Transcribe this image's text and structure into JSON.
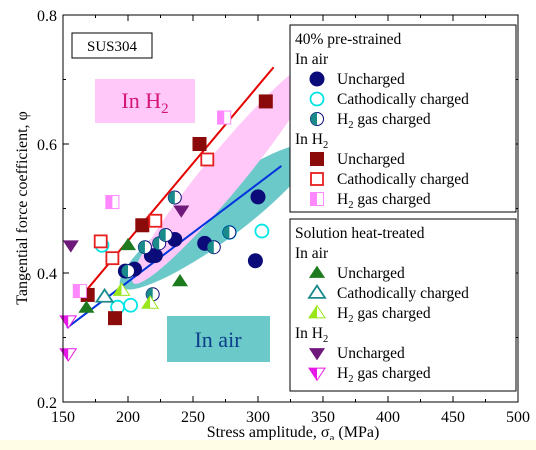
{
  "chart_data": {
    "type": "scatter",
    "title": "",
    "xlabel": "Stress amplitude, σ",
    "xlabel_sub": "a",
    "xlabel_unit": " (MPa)",
    "ylabel": "Tangential force coefficient, φ",
    "xlim": [
      150,
      500
    ],
    "ylim": [
      0.2,
      0.8
    ],
    "xticks": [
      150,
      200,
      250,
      300,
      350,
      400,
      450,
      500
    ],
    "yticks": [
      0.2,
      0.4,
      0.6,
      0.8
    ],
    "ytick_labels": [
      "0.2",
      "0.4",
      "0.6",
      "0.8"
    ],
    "grid": false,
    "material_label": "SUS304",
    "annotations": {
      "h2_region": {
        "text": "In H",
        "sub": "2"
      },
      "air_region": {
        "text": "In air"
      }
    },
    "colors": {
      "navy": "#0b0b7a",
      "cyan": "#00e6e6",
      "darkred": "#8b0a0a",
      "red": "#e61e1e",
      "pink": "#ff88ff",
      "green": "#1e7a1e",
      "teal": "#1a8a8a",
      "lime": "#99e61a",
      "purple": "#6e1a7a",
      "magenta": "#e619e6",
      "red_fit": "#e60000",
      "blue_fit": "#0033dd",
      "teal_band": "#6cc9c9",
      "pink_band": "#ffc8f8"
    },
    "legend": {
      "placement": "right",
      "groups": [
        {
          "title": "40% pre-strained",
          "subgroups": [
            {
              "title": "In air",
              "title_sub": "",
              "entries": [
                {
                  "label": "Uncharged",
                  "label_sub": "",
                  "label_after": "",
                  "series": "pre_air_uncharged"
                },
                {
                  "label": "Cathodically charged",
                  "label_sub": "",
                  "label_after": "",
                  "series": "pre_air_cathodic"
                },
                {
                  "label": "H",
                  "label_sub": "2",
                  "label_after": " gas charged",
                  "series": "pre_air_h2gas"
                }
              ]
            },
            {
              "title": "In H",
              "title_sub": "2",
              "entries": [
                {
                  "label": "Uncharged",
                  "label_sub": "",
                  "label_after": "",
                  "series": "pre_h2_uncharged"
                },
                {
                  "label": "Cathodically charged",
                  "label_sub": "",
                  "label_after": "",
                  "series": "pre_h2_cathodic"
                },
                {
                  "label": "H",
                  "label_sub": "2",
                  "label_after": " gas charged",
                  "series": "pre_h2_h2gas"
                }
              ]
            }
          ]
        },
        {
          "title": "Solution heat-treated",
          "subgroups": [
            {
              "title": "In air",
              "title_sub": "",
              "entries": [
                {
                  "label": "Uncharged",
                  "label_sub": "",
                  "label_after": "",
                  "series": "sol_air_uncharged"
                },
                {
                  "label": "Cathodically charged",
                  "label_sub": "",
                  "label_after": "",
                  "series": "sol_air_cathodic"
                },
                {
                  "label": "H",
                  "label_sub": "2",
                  "label_after": " gas charged",
                  "series": "sol_air_h2gas"
                }
              ]
            },
            {
              "title": "In H",
              "title_sub": "2",
              "entries": [
                {
                  "label": "Uncharged",
                  "label_sub": "",
                  "label_after": "",
                  "series": "sol_h2_uncharged"
                },
                {
                  "label": "H",
                  "label_sub": "2",
                  "label_after": " gas charged",
                  "series": "sol_h2_h2gas"
                }
              ]
            }
          ]
        }
      ]
    },
    "fit_lines": [
      {
        "name": "h2_fit",
        "color": "#e60000",
        "x": [
          165,
          312
        ],
        "y": [
          0.366,
          0.719
        ]
      },
      {
        "name": "air_fit",
        "color": "#0033dd",
        "x": [
          153,
          318
        ],
        "y": [
          0.315,
          0.566
        ]
      }
    ],
    "series": [
      {
        "id": "pre_air_uncharged",
        "marker": "circle",
        "fill": "solid",
        "color": "#0b0b7a",
        "points": [
          [
            198,
            0.403
          ],
          [
            205,
            0.406
          ],
          [
            218,
            0.427
          ],
          [
            221,
            0.427
          ],
          [
            236,
            0.452
          ],
          [
            259,
            0.446
          ],
          [
            298,
            0.419
          ],
          [
            300,
            0.518
          ]
        ]
      },
      {
        "id": "pre_air_cathodic",
        "marker": "circle",
        "fill": "open",
        "color": "#00e6e6",
        "points": [
          [
            180,
            0.443
          ],
          [
            192,
            0.347
          ],
          [
            202,
            0.35
          ],
          [
            278,
            0.463
          ],
          [
            303,
            0.465
          ]
        ]
      },
      {
        "id": "pre_air_h2gas",
        "marker": "circle",
        "fill": "half",
        "color": "#1a8a8a",
        "points": [
          [
            200,
            0.403
          ],
          [
            213,
            0.44
          ],
          [
            219,
            0.367
          ],
          [
            224,
            0.446
          ],
          [
            229,
            0.459
          ],
          [
            236,
            0.517
          ],
          [
            266,
            0.44
          ],
          [
            278,
            0.463
          ]
        ]
      },
      {
        "id": "pre_h2_uncharged",
        "marker": "square",
        "fill": "solid",
        "color": "#8b0a0a",
        "points": [
          [
            169,
            0.366
          ],
          [
            190,
            0.33
          ],
          [
            211,
            0.474
          ],
          [
            255,
            0.6
          ],
          [
            306,
            0.666
          ]
        ]
      },
      {
        "id": "pre_h2_cathodic",
        "marker": "square",
        "fill": "open",
        "color": "#e61e1e",
        "points": [
          [
            179,
            0.449
          ],
          [
            188,
            0.423
          ],
          [
            221,
            0.481
          ],
          [
            261,
            0.576
          ]
        ]
      },
      {
        "id": "pre_h2_h2gas",
        "marker": "square",
        "fill": "half",
        "color": "#ff88ff",
        "points": [
          [
            163,
            0.372
          ],
          [
            188,
            0.51
          ],
          [
            274,
            0.641
          ]
        ]
      },
      {
        "id": "sol_air_uncharged",
        "marker": "triangle-up",
        "fill": "solid",
        "color": "#1e7a1e",
        "points": [
          [
            168,
            0.346
          ],
          [
            200,
            0.443
          ],
          [
            240,
            0.387
          ]
        ]
      },
      {
        "id": "sol_air_cathodic",
        "marker": "triangle-up",
        "fill": "open",
        "color": "#1a8a8a",
        "points": [
          [
            182,
            0.363
          ]
        ]
      },
      {
        "id": "sol_air_h2gas",
        "marker": "triangle-up",
        "fill": "half",
        "color": "#99e61a",
        "points": [
          [
            195,
            0.373
          ],
          [
            217,
            0.353
          ]
        ]
      },
      {
        "id": "sol_h2_uncharged",
        "marker": "triangle-down",
        "fill": "solid",
        "color": "#6e1a7a",
        "points": [
          [
            156,
            0.443
          ],
          [
            241,
            0.497
          ]
        ]
      },
      {
        "id": "sol_h2_h2gas",
        "marker": "triangle-down",
        "fill": "half",
        "color": "#e619e6",
        "points": [
          [
            154,
            0.326
          ],
          [
            154,
            0.275
          ]
        ]
      }
    ]
  }
}
